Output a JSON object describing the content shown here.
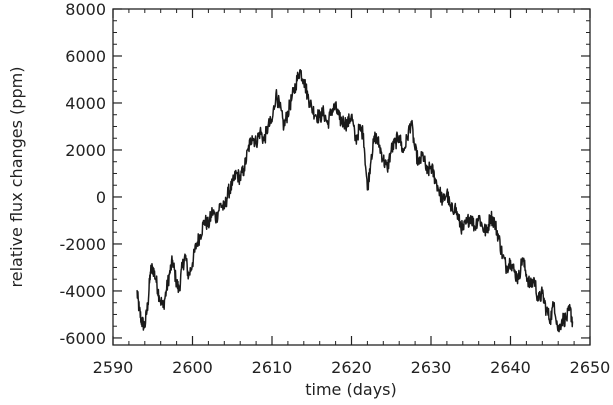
{
  "chart_data": {
    "type": "line",
    "title": "",
    "xlabel": "time (days)",
    "ylabel": "relative flux changes (ppm)",
    "xlim": [
      2590,
      2650
    ],
    "ylim": [
      -6300,
      8000
    ],
    "x_ticks": [
      2590,
      2600,
      2610,
      2620,
      2630,
      2640,
      2650
    ],
    "y_ticks": [
      -6000,
      -4000,
      -2000,
      0,
      2000,
      4000,
      6000,
      8000
    ],
    "x_tick_labels": [
      "2590",
      "2600",
      "2610",
      "2620",
      "2630",
      "2640",
      "2650"
    ],
    "y_tick_labels": [
      "-6000",
      "-4000",
      "-2000",
      "0",
      "2000",
      "4000",
      "6000",
      "8000"
    ],
    "grid": false,
    "line_color": "#1a1a1a",
    "series": [
      {
        "x": [
          2593.0,
          2593.3,
          2593.6,
          2594.0,
          2594.4,
          2594.7,
          2595.0,
          2595.4,
          2595.8,
          2596.3,
          2596.7,
          2597.1,
          2597.5,
          2597.9,
          2598.3,
          2598.7,
          2599.1,
          2599.5,
          2600.0,
          2600.5,
          2601.0,
          2601.5,
          2602.0,
          2602.5,
          2603.0,
          2603.5,
          2604.0,
          2604.5,
          2605.0,
          2605.5,
          2606.0,
          2606.5,
          2607.0,
          2607.5,
          2608.0,
          2608.5,
          2609.0,
          2609.5,
          2610.0,
          2610.5,
          2611.0,
          2611.5,
          2612.0,
          2612.5,
          2613.0,
          2613.5,
          2614.0,
          2614.5,
          2615.0,
          2615.5,
          2616.0,
          2616.5,
          2617.0,
          2617.5,
          2618.0,
          2618.5,
          2619.0,
          2619.5,
          2620.0,
          2620.5,
          2621.0,
          2621.5,
          2622.0,
          2622.5,
          2623.0,
          2623.5,
          2624.0,
          2624.5,
          2625.0,
          2625.5,
          2626.0,
          2626.5,
          2627.0,
          2627.5,
          2628.0,
          2628.5,
          2629.0,
          2629.5,
          2630.0,
          2630.5,
          2631.0,
          2631.5,
          2632.0,
          2632.5,
          2633.0,
          2633.5,
          2634.0,
          2634.5,
          2635.0,
          2635.5,
          2636.0,
          2636.5,
          2637.0,
          2637.5,
          2638.0,
          2638.5,
          2639.0,
          2639.5,
          2640.0,
          2640.5,
          2641.0,
          2641.5,
          2642.0,
          2642.5,
          2643.0,
          2643.5,
          2644.0,
          2644.5,
          2645.0,
          2645.5,
          2646.0,
          2646.5,
          2647.0,
          2647.5,
          2647.8
        ],
        "y": [
          -4000,
          -4800,
          -5300,
          -5500,
          -4500,
          -3200,
          -3000,
          -3500,
          -4200,
          -4700,
          -4000,
          -3300,
          -2700,
          -3500,
          -4000,
          -3000,
          -2500,
          -3400,
          -2800,
          -2000,
          -1600,
          -1000,
          -1200,
          -600,
          -900,
          -300,
          -500,
          200,
          500,
          1000,
          800,
          1200,
          2000,
          2600,
          2300,
          2800,
          2400,
          3000,
          3200,
          4400,
          3800,
          3000,
          3600,
          4200,
          4800,
          5400,
          5000,
          4300,
          3800,
          3500,
          3400,
          3600,
          3100,
          3700,
          3800,
          3300,
          3200,
          3100,
          3500,
          2400,
          2900,
          2700,
          300,
          1800,
          2600,
          2200,
          1600,
          1200,
          2000,
          2300,
          2600,
          1900,
          2500,
          3200,
          2000,
          1400,
          1800,
          1000,
          1300,
          800,
          300,
          -200,
          200,
          -600,
          -400,
          -1000,
          -1400,
          -1100,
          -800,
          -1300,
          -800,
          -1300,
          -1500,
          -800,
          -1100,
          -1700,
          -2500,
          -3000,
          -2700,
          -3200,
          -3500,
          -2600,
          -3300,
          -3800,
          -3500,
          -4400,
          -4100,
          -4800,
          -5200,
          -4500,
          -5700,
          -5200,
          -5200,
          -4800,
          -5300
        ]
      }
    ]
  }
}
